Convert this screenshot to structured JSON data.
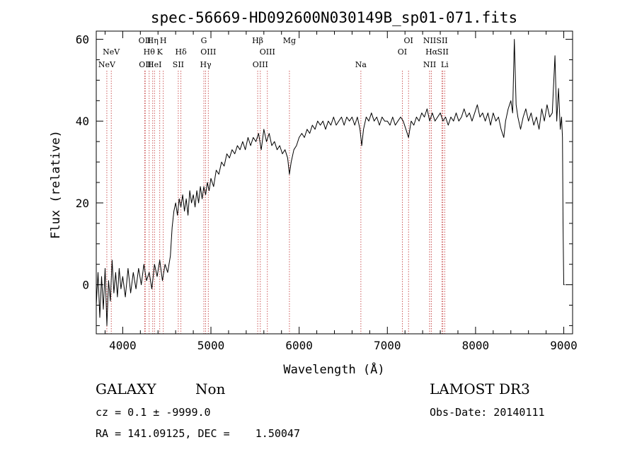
{
  "chart_data": {
    "type": "line",
    "title": "spec-56669-HD092600N030149B_sp01-071.fits",
    "xlabel": "Wavelength (Å)",
    "ylabel": "Flux (relative)",
    "xlim": [
      3700,
      9100
    ],
    "ylim": [
      -12,
      62
    ],
    "xticks": [
      4000,
      5000,
      6000,
      7000,
      8000,
      9000
    ],
    "yticks": [
      0,
      20,
      40,
      60
    ],
    "grid": false,
    "series": [
      {
        "color": "#000000",
        "points": [
          [
            3700,
            -5
          ],
          [
            3720,
            3
          ],
          [
            3740,
            -8
          ],
          [
            3760,
            2
          ],
          [
            3780,
            -6
          ],
          [
            3800,
            4
          ],
          [
            3820,
            -10
          ],
          [
            3840,
            1
          ],
          [
            3860,
            -4
          ],
          [
            3880,
            6
          ],
          [
            3900,
            -2
          ],
          [
            3920,
            3
          ],
          [
            3940,
            -3
          ],
          [
            3960,
            4
          ],
          [
            3980,
            -1
          ],
          [
            4000,
            2
          ],
          [
            4030,
            -3
          ],
          [
            4060,
            4
          ],
          [
            4090,
            -2
          ],
          [
            4120,
            3
          ],
          [
            4150,
            -1
          ],
          [
            4180,
            4
          ],
          [
            4210,
            0
          ],
          [
            4240,
            5
          ],
          [
            4270,
            1
          ],
          [
            4300,
            3
          ],
          [
            4330,
            -1
          ],
          [
            4360,
            5
          ],
          [
            4390,
            2
          ],
          [
            4420,
            6
          ],
          [
            4450,
            1
          ],
          [
            4480,
            5
          ],
          [
            4510,
            3
          ],
          [
            4540,
            7
          ],
          [
            4560,
            14
          ],
          [
            4580,
            18
          ],
          [
            4600,
            20
          ],
          [
            4620,
            17
          ],
          [
            4640,
            21
          ],
          [
            4660,
            19
          ],
          [
            4680,
            22
          ],
          [
            4700,
            18
          ],
          [
            4720,
            21
          ],
          [
            4740,
            17
          ],
          [
            4760,
            23
          ],
          [
            4780,
            20
          ],
          [
            4800,
            22
          ],
          [
            4820,
            19
          ],
          [
            4840,
            23
          ],
          [
            4860,
            20
          ],
          [
            4880,
            24
          ],
          [
            4900,
            21
          ],
          [
            4920,
            24
          ],
          [
            4940,
            22
          ],
          [
            4960,
            25
          ],
          [
            4980,
            23
          ],
          [
            5000,
            26
          ],
          [
            5030,
            24
          ],
          [
            5060,
            28
          ],
          [
            5090,
            27
          ],
          [
            5120,
            30
          ],
          [
            5150,
            29
          ],
          [
            5180,
            32
          ],
          [
            5210,
            31
          ],
          [
            5240,
            33
          ],
          [
            5270,
            32
          ],
          [
            5300,
            34
          ],
          [
            5330,
            33
          ],
          [
            5360,
            35
          ],
          [
            5390,
            33
          ],
          [
            5420,
            36
          ],
          [
            5450,
            34
          ],
          [
            5480,
            36
          ],
          [
            5510,
            35
          ],
          [
            5540,
            37
          ],
          [
            5570,
            33
          ],
          [
            5600,
            38
          ],
          [
            5630,
            35
          ],
          [
            5660,
            37
          ],
          [
            5690,
            34
          ],
          [
            5720,
            35
          ],
          [
            5750,
            33
          ],
          [
            5780,
            34
          ],
          [
            5810,
            32
          ],
          [
            5840,
            33
          ],
          [
            5870,
            31
          ],
          [
            5890,
            27
          ],
          [
            5910,
            30
          ],
          [
            5940,
            33
          ],
          [
            5970,
            34
          ],
          [
            6000,
            36
          ],
          [
            6030,
            37
          ],
          [
            6060,
            36
          ],
          [
            6090,
            38
          ],
          [
            6120,
            37
          ],
          [
            6150,
            39
          ],
          [
            6180,
            38
          ],
          [
            6210,
            40
          ],
          [
            6240,
            39
          ],
          [
            6270,
            40
          ],
          [
            6300,
            38
          ],
          [
            6330,
            40
          ],
          [
            6360,
            39
          ],
          [
            6390,
            41
          ],
          [
            6420,
            39
          ],
          [
            6450,
            40
          ],
          [
            6480,
            41
          ],
          [
            6510,
            39
          ],
          [
            6540,
            41
          ],
          [
            6570,
            40
          ],
          [
            6600,
            41
          ],
          [
            6630,
            39
          ],
          [
            6660,
            41
          ],
          [
            6690,
            38
          ],
          [
            6710,
            34
          ],
          [
            6730,
            38
          ],
          [
            6760,
            41
          ],
          [
            6790,
            40
          ],
          [
            6820,
            42
          ],
          [
            6850,
            40
          ],
          [
            6880,
            41
          ],
          [
            6910,
            39
          ],
          [
            6940,
            41
          ],
          [
            6970,
            40
          ],
          [
            7000,
            40
          ],
          [
            7030,
            39
          ],
          [
            7060,
            41
          ],
          [
            7090,
            39
          ],
          [
            7120,
            40
          ],
          [
            7150,
            41
          ],
          [
            7180,
            40
          ],
          [
            7210,
            38
          ],
          [
            7240,
            36
          ],
          [
            7270,
            40
          ],
          [
            7300,
            39
          ],
          [
            7330,
            41
          ],
          [
            7360,
            40
          ],
          [
            7390,
            42
          ],
          [
            7420,
            41
          ],
          [
            7450,
            43
          ],
          [
            7480,
            40
          ],
          [
            7510,
            42
          ],
          [
            7540,
            40
          ],
          [
            7570,
            41
          ],
          [
            7600,
            42
          ],
          [
            7630,
            40
          ],
          [
            7660,
            41
          ],
          [
            7690,
            39
          ],
          [
            7720,
            41
          ],
          [
            7750,
            40
          ],
          [
            7780,
            42
          ],
          [
            7810,
            40
          ],
          [
            7840,
            41
          ],
          [
            7870,
            43
          ],
          [
            7900,
            41
          ],
          [
            7930,
            42
          ],
          [
            7960,
            40
          ],
          [
            7990,
            42
          ],
          [
            8020,
            44
          ],
          [
            8050,
            41
          ],
          [
            8080,
            42
          ],
          [
            8110,
            40
          ],
          [
            8140,
            42
          ],
          [
            8170,
            39
          ],
          [
            8200,
            42
          ],
          [
            8230,
            40
          ],
          [
            8260,
            41
          ],
          [
            8290,
            38
          ],
          [
            8320,
            36
          ],
          [
            8340,
            40
          ],
          [
            8370,
            43
          ],
          [
            8400,
            45
          ],
          [
            8420,
            42
          ],
          [
            8440,
            60
          ],
          [
            8460,
            44
          ],
          [
            8480,
            41
          ],
          [
            8510,
            38
          ],
          [
            8540,
            41
          ],
          [
            8570,
            43
          ],
          [
            8600,
            40
          ],
          [
            8630,
            42
          ],
          [
            8660,
            39
          ],
          [
            8690,
            41
          ],
          [
            8720,
            38
          ],
          [
            8750,
            43
          ],
          [
            8780,
            40
          ],
          [
            8810,
            44
          ],
          [
            8840,
            41
          ],
          [
            8870,
            42
          ],
          [
            8900,
            56
          ],
          [
            8920,
            40
          ],
          [
            8940,
            48
          ],
          [
            8960,
            38
          ],
          [
            8975,
            41
          ],
          [
            8985,
            36
          ],
          [
            8992,
            15
          ],
          [
            9000,
            0
          ],
          [
            9010,
            0
          ]
        ]
      }
    ],
    "lines_color": "#c03030",
    "lines": [
      {
        "wl": 3820,
        "label": "NeV",
        "row": 3
      },
      {
        "wl": 3870,
        "label": "NeV",
        "row": 2
      },
      {
        "wl": 4250,
        "label": "OII",
        "row": 1
      },
      {
        "wl": 4255,
        "label": "OII",
        "row": 3
      },
      {
        "wl": 4300,
        "label": "Hθ",
        "row": 2
      },
      {
        "wl": 4340,
        "label": "Hη",
        "row": 1
      },
      {
        "wl": 4360,
        "label": "HeI",
        "row": 3
      },
      {
        "wl": 4420,
        "label": "K",
        "row": 2
      },
      {
        "wl": 4460,
        "label": "H",
        "row": 1
      },
      {
        "wl": 4630,
        "label": "SII",
        "row": 3
      },
      {
        "wl": 4660,
        "label": "Hδ",
        "row": 2
      },
      {
        "wl": 4920,
        "label": "G",
        "row": 1
      },
      {
        "wl": 4940,
        "label": "Hγ",
        "row": 3
      },
      {
        "wl": 4970,
        "label": "OIII",
        "row": 2
      },
      {
        "wl": 5530,
        "label": "Hβ",
        "row": 1
      },
      {
        "wl": 5560,
        "label": "OIII",
        "row": 3
      },
      {
        "wl": 5640,
        "label": "OIII",
        "row": 2
      },
      {
        "wl": 5890,
        "label": "Mg",
        "row": 1
      },
      {
        "wl": 6700,
        "label": "Na",
        "row": 3
      },
      {
        "wl": 7170,
        "label": "OI",
        "row": 2
      },
      {
        "wl": 7240,
        "label": "OI",
        "row": 1
      },
      {
        "wl": 7480,
        "label": "NII",
        "row": 1
      },
      {
        "wl": 7480,
        "label": "NII",
        "row": 3
      },
      {
        "wl": 7500,
        "label": "Hα",
        "row": 2
      },
      {
        "wl": 7620,
        "label": "SII",
        "row": 1
      },
      {
        "wl": 7630,
        "label": "SII",
        "row": 2
      },
      {
        "wl": 7650,
        "label": "Li",
        "row": 3
      }
    ]
  },
  "info": {
    "class": "GALAXY",
    "subclass": "Non",
    "survey": "LAMOST DR3",
    "cz": "cz = 0.1 ± -9999.0",
    "obs_date": "Obs-Date: 20140111",
    "radec": "RA = 141.09125, DEC =    1.50047"
  }
}
